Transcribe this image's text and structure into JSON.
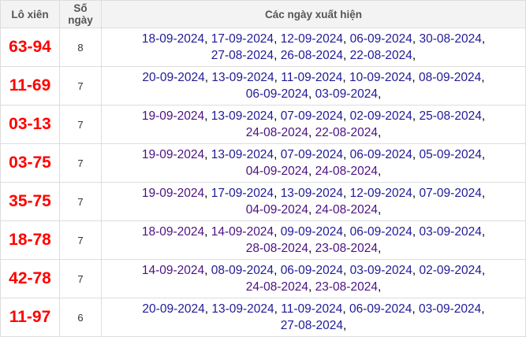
{
  "headers": [
    "Lô xiên",
    "Số ngày",
    "Các ngày xuất hiện"
  ],
  "colors": {
    "pair": "#ff0000",
    "link": "#1f1a96",
    "visited_link": "#4b1182"
  },
  "rows": [
    {
      "pair": "63-94",
      "count": "8",
      "dates": [
        "18-09-2024",
        "17-09-2024",
        "12-09-2024",
        "06-09-2024",
        "30-08-2024",
        "27-08-2024",
        "26-08-2024",
        "22-08-2024"
      ]
    },
    {
      "pair": "11-69",
      "count": "7",
      "dates": [
        "20-09-2024",
        "13-09-2024",
        "11-09-2024",
        "10-09-2024",
        "08-09-2024",
        "06-09-2024",
        "03-09-2024"
      ]
    },
    {
      "pair": "03-13",
      "count": "7",
      "dates": [
        "19-09-2024",
        "13-09-2024",
        "07-09-2024",
        "02-09-2024",
        "25-08-2024",
        "24-08-2024",
        "22-08-2024"
      ]
    },
    {
      "pair": "03-75",
      "count": "7",
      "dates": [
        "19-09-2024",
        "13-09-2024",
        "07-09-2024",
        "06-09-2024",
        "05-09-2024",
        "04-09-2024",
        "24-08-2024"
      ]
    },
    {
      "pair": "35-75",
      "count": "7",
      "dates": [
        "19-09-2024",
        "17-09-2024",
        "13-09-2024",
        "12-09-2024",
        "07-09-2024",
        "04-09-2024",
        "24-08-2024"
      ]
    },
    {
      "pair": "18-78",
      "count": "7",
      "dates": [
        "18-09-2024",
        "14-09-2024",
        "09-09-2024",
        "06-09-2024",
        "03-09-2024",
        "28-08-2024",
        "23-08-2024"
      ]
    },
    {
      "pair": "42-78",
      "count": "7",
      "dates": [
        "14-09-2024",
        "08-09-2024",
        "06-09-2024",
        "03-09-2024",
        "02-09-2024",
        "24-08-2024",
        "23-08-2024"
      ]
    },
    {
      "pair": "11-97",
      "count": "6",
      "dates": [
        "20-09-2024",
        "13-09-2024",
        "11-09-2024",
        "06-09-2024",
        "03-09-2024",
        "27-08-2024"
      ]
    }
  ]
}
